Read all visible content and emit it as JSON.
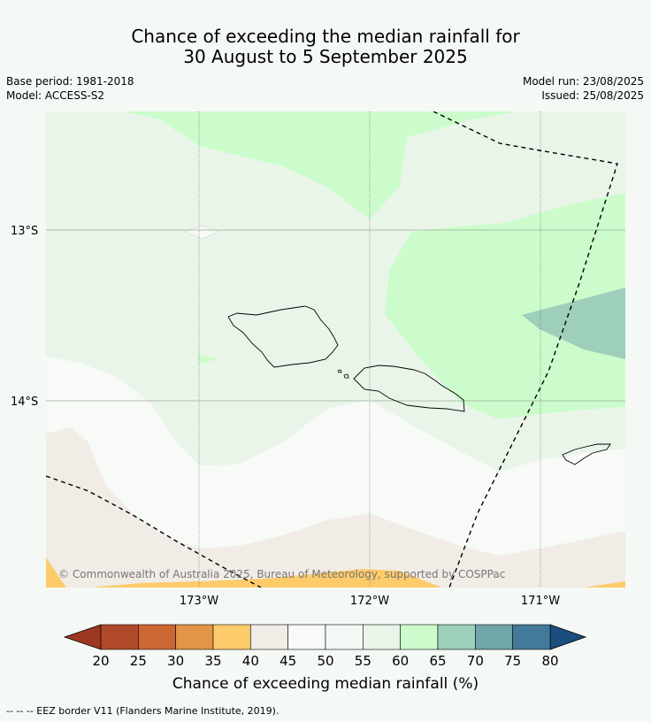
{
  "title": {
    "line1": "Chance of exceeding the median rainfall for",
    "line2": "30 August to 5 September 2025"
  },
  "meta_left": {
    "base_period": "Base period: 1981-2018",
    "model": "Model: ACCESS-S2"
  },
  "meta_right": {
    "model_run": "Model run: 23/08/2025",
    "issued": "Issued: 25/08/2025"
  },
  "map": {
    "lat_labels": [
      "13°S",
      "14°S"
    ],
    "lon_labels": [
      "173°W",
      "172°W",
      "171°W"
    ],
    "copyright": "© Commonwealth of Australia 2025, Bureau of Meteorology, supported by COSPPac"
  },
  "colorbar": {
    "ticks": [
      "20",
      "25",
      "30",
      "35",
      "40",
      "45",
      "50",
      "55",
      "60",
      "65",
      "70",
      "75",
      "80"
    ],
    "colors": [
      "#b0492a",
      "#cc6633",
      "#e39447",
      "#fdcb6a",
      "#f1ece6",
      "#f7faf7",
      "#f5f9f5",
      "#eaf5ea",
      "#ccfccc",
      "#9dcfba",
      "#6fa6a8",
      "#437a9a"
    ],
    "under_color": "#9c3820",
    "over_color": "#1a4e7e",
    "label": "Chance of exceeding median rainfall (%)"
  },
  "footer": {
    "legend_text": "--  --  -- EEZ border V11 (Flanders Marine Institute, 2019)."
  }
}
